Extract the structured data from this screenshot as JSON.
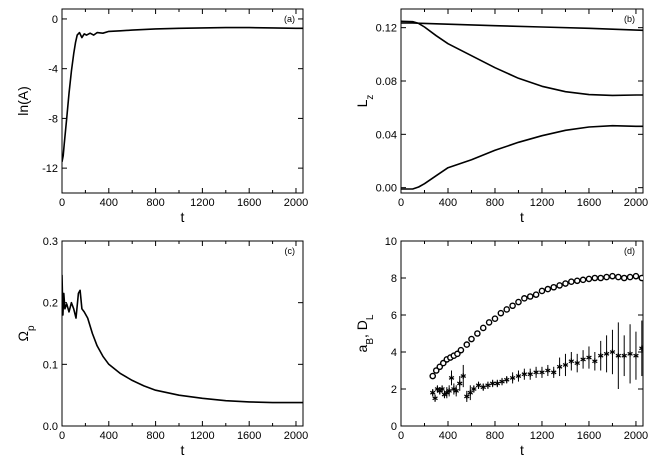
{
  "chart_data": [
    {
      "id": "a",
      "type": "line",
      "panel_label": "(a)",
      "xlabel": "t",
      "ylabel": "ln(A)",
      "xlim": [
        0,
        2060
      ],
      "ylim": [
        -14,
        0.8
      ],
      "xticks": [
        0,
        400,
        800,
        1200,
        1600,
        2000
      ],
      "yticks": [
        -12,
        -8,
        -4,
        0
      ],
      "xtick_labels": [
        "0",
        "400",
        "800",
        "1200",
        "1600",
        "2000"
      ],
      "ytick_labels": [
        "-12",
        "-8",
        "-4",
        "0"
      ],
      "series": [
        {
          "x": [
            0,
            10,
            20,
            40,
            60,
            80,
            100,
            115,
            130,
            150,
            170,
            190,
            210,
            240,
            270,
            300,
            350,
            400,
            500,
            600,
            800,
            1000,
            1200,
            1400,
            1600,
            1800,
            2000,
            2060
          ],
          "y": [
            -11.5,
            -11.0,
            -10.0,
            -8.0,
            -6.0,
            -4.2,
            -2.8,
            -1.9,
            -1.3,
            -1.1,
            -1.5,
            -1.2,
            -1.3,
            -1.15,
            -1.3,
            -1.1,
            -1.15,
            -1.0,
            -0.95,
            -0.9,
            -0.8,
            -0.75,
            -0.72,
            -0.7,
            -0.7,
            -0.72,
            -0.75,
            -0.75
          ]
        }
      ]
    },
    {
      "id": "b",
      "type": "line",
      "panel_label": "(b)",
      "xlabel": "t",
      "ylabel": "L_z",
      "xlim": [
        0,
        2060
      ],
      "ylim": [
        -0.004,
        0.134
      ],
      "xticks": [
        0,
        400,
        800,
        1200,
        1600,
        2000
      ],
      "yticks": [
        0.0,
        0.04,
        0.08,
        0.12
      ],
      "xtick_labels": [
        "0",
        "400",
        "800",
        "1200",
        "1600",
        "2000"
      ],
      "ytick_labels": [
        "0.00",
        "0.04",
        "0.08",
        "0.12"
      ],
      "series": [
        {
          "x": [
            0,
            100,
            200,
            400,
            800,
            1200,
            1600,
            2000,
            2060
          ],
          "y": [
            0.1235,
            0.1235,
            0.1232,
            0.1226,
            0.1215,
            0.1205,
            0.1195,
            0.1182,
            0.118
          ]
        },
        {
          "x": [
            0,
            100,
            150,
            200,
            300,
            400,
            600,
            800,
            1000,
            1200,
            1400,
            1600,
            1800,
            2000,
            2060
          ],
          "y": [
            0.1248,
            0.1245,
            0.1232,
            0.1205,
            0.114,
            0.108,
            0.099,
            0.09,
            0.082,
            0.076,
            0.072,
            0.0698,
            0.0692,
            0.0695,
            0.0695
          ]
        },
        {
          "x": [
            0,
            100,
            150,
            200,
            300,
            400,
            600,
            800,
            1000,
            1200,
            1400,
            1600,
            1800,
            2000,
            2060
          ],
          "y": [
            -0.001,
            -0.001,
            0.0005,
            0.003,
            0.009,
            0.015,
            0.021,
            0.028,
            0.034,
            0.039,
            0.043,
            0.0455,
            0.0465,
            0.046,
            0.046
          ]
        }
      ]
    },
    {
      "id": "c",
      "type": "line",
      "panel_label": "(c)",
      "xlabel": "t",
      "ylabel": "Ω_p",
      "xlim": [
        0,
        2060
      ],
      "ylim": [
        0,
        0.3
      ],
      "xticks": [
        0,
        400,
        800,
        1200,
        1600,
        2000
      ],
      "yticks": [
        0.0,
        0.1,
        0.2,
        0.3
      ],
      "xtick_labels": [
        "0",
        "400",
        "800",
        "1200",
        "1600",
        "2000"
      ],
      "ytick_labels": [
        "0.0",
        "0.1",
        "0.2",
        "0.3"
      ],
      "series": [
        {
          "x": [
            0,
            8,
            15,
            25,
            40,
            60,
            80,
            100,
            120,
            140,
            155,
            170,
            190,
            220,
            260,
            300,
            350,
            400,
            500,
            600,
            700,
            800,
            1000,
            1200,
            1400,
            1600,
            1800,
            2000,
            2060
          ],
          "y": [
            0.245,
            0.18,
            0.215,
            0.19,
            0.198,
            0.185,
            0.2,
            0.19,
            0.175,
            0.215,
            0.22,
            0.19,
            0.185,
            0.175,
            0.15,
            0.13,
            0.113,
            0.1,
            0.085,
            0.074,
            0.065,
            0.058,
            0.05,
            0.045,
            0.041,
            0.039,
            0.038,
            0.038,
            0.038
          ]
        }
      ]
    },
    {
      "id": "d",
      "type": "scatter",
      "panel_label": "(d)",
      "xlabel": "t",
      "ylabel": "a_B, D_L",
      "xlim": [
        0,
        2060
      ],
      "ylim": [
        0,
        10
      ],
      "xticks": [
        0,
        400,
        800,
        1200,
        1600,
        2000
      ],
      "yticks": [
        0,
        2,
        4,
        6,
        8,
        10
      ],
      "xtick_labels": [
        "0",
        "400",
        "800",
        "1200",
        "1600",
        "2000"
      ],
      "ytick_labels": [
        "0",
        "2",
        "4",
        "6",
        "8",
        "10"
      ],
      "series": [
        {
          "marker": "circle",
          "x": [
            270,
            300,
            330,
            360,
            390,
            420,
            450,
            480,
            510,
            560,
            600,
            650,
            700,
            750,
            800,
            850,
            900,
            950,
            1000,
            1050,
            1100,
            1150,
            1200,
            1250,
            1300,
            1350,
            1400,
            1450,
            1500,
            1550,
            1600,
            1650,
            1700,
            1750,
            1800,
            1850,
            1900,
            1950,
            2000,
            2050
          ],
          "y": [
            2.7,
            3.0,
            3.2,
            3.4,
            3.6,
            3.7,
            3.8,
            3.9,
            4.1,
            4.4,
            4.7,
            5.0,
            5.3,
            5.6,
            5.8,
            6.1,
            6.3,
            6.5,
            6.7,
            6.9,
            7.0,
            7.1,
            7.3,
            7.4,
            7.5,
            7.6,
            7.7,
            7.8,
            7.85,
            7.9,
            7.95,
            8.0,
            8.0,
            8.05,
            8.1,
            8.05,
            8.0,
            8.05,
            8.1,
            8.0
          ]
        },
        {
          "marker": "star",
          "x": [
            270,
            290,
            310,
            330,
            350,
            370,
            390,
            410,
            430,
            450,
            470,
            500,
            530,
            560,
            590,
            620,
            660,
            700,
            740,
            780,
            820,
            860,
            900,
            950,
            1000,
            1050,
            1100,
            1150,
            1200,
            1250,
            1300,
            1350,
            1400,
            1450,
            1500,
            1550,
            1600,
            1650,
            1700,
            1750,
            1800,
            1850,
            1900,
            1950,
            2000,
            2050
          ],
          "y": [
            1.8,
            1.5,
            2.0,
            1.9,
            2.0,
            1.7,
            1.8,
            1.9,
            2.6,
            2.0,
            1.9,
            2.3,
            2.7,
            1.6,
            1.8,
            2.0,
            2.2,
            2.1,
            2.2,
            2.3,
            2.3,
            2.4,
            2.5,
            2.6,
            2.7,
            2.8,
            2.8,
            2.9,
            2.9,
            3.0,
            2.9,
            3.2,
            3.3,
            3.5,
            3.4,
            3.6,
            3.7,
            3.5,
            3.8,
            3.9,
            4.0,
            3.8,
            3.8,
            3.9,
            3.8,
            4.2
          ],
          "err": [
            0.2,
            0.2,
            0.2,
            0.2,
            0.2,
            0.2,
            0.3,
            0.3,
            0.4,
            0.3,
            0.3,
            0.4,
            0.6,
            0.3,
            0.4,
            0.2,
            0.2,
            0.2,
            0.2,
            0.2,
            0.2,
            0.2,
            0.2,
            0.3,
            0.3,
            0.3,
            0.3,
            0.3,
            0.3,
            0.3,
            0.3,
            0.5,
            0.6,
            0.5,
            0.5,
            0.5,
            0.6,
            0.5,
            0.8,
            1.0,
            1.2,
            1.8,
            1.1,
            1.6,
            1.3,
            1.5
          ]
        }
      ]
    }
  ]
}
